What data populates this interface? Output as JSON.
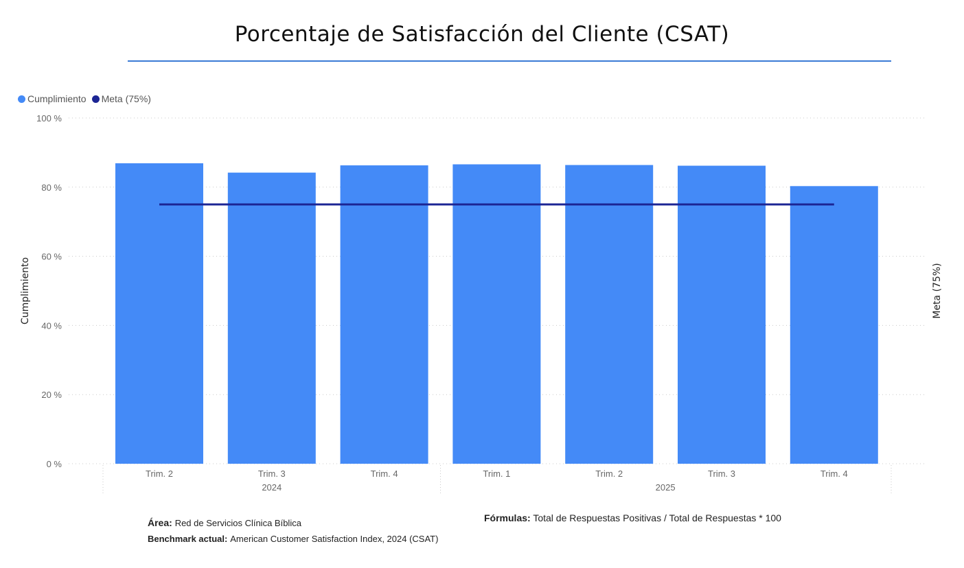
{
  "title": "Porcentaje de Satisfacción del Cliente (CSAT)",
  "colors": {
    "bar": "#448af7",
    "target": "#1c2594",
    "rule": "#3a7bd5",
    "grid": "#c8c8c8"
  },
  "legend": [
    {
      "label": "Cumplimiento",
      "color": "#448af7"
    },
    {
      "label": "Meta (75%)",
      "color": "#1c2594"
    }
  ],
  "chart_data": {
    "type": "bar",
    "categories": [
      "Trim. 2",
      "Trim. 3",
      "Trim. 4",
      "Trim. 1",
      "Trim. 2",
      "Trim. 3",
      "Trim. 4"
    ],
    "groups": [
      {
        "label": "2024",
        "count": 3
      },
      {
        "label": "2025",
        "count": 4
      }
    ],
    "series": [
      {
        "name": "Cumplimiento",
        "type": "bar",
        "values": [
          86.9,
          84.2,
          86.3,
          86.6,
          86.4,
          86.2,
          80.3
        ]
      },
      {
        "name": "Meta (75%)",
        "type": "line",
        "values": [
          75,
          75,
          75,
          75,
          75,
          75,
          75
        ]
      }
    ],
    "ylabel": "Cumplimiento",
    "y2label": "Meta (75%)",
    "ylim": [
      0,
      100
    ],
    "yticks": [
      0,
      20,
      40,
      60,
      80,
      100
    ],
    "ytick_labels": [
      "0 %",
      "20 %",
      "40 %",
      "60 %",
      "80 %",
      "100 %"
    ],
    "grid": true,
    "legend_position": "top-left"
  },
  "notes": {
    "area_label": "Área:",
    "area_value": "Red de Servicios Clínica Bíblica",
    "benchmark_label": "Benchmark actual:",
    "benchmark_value": "American Customer Satisfaction Index, 2024 (CSAT)",
    "formula_label": "Fórmulas:",
    "formula_value": "Total de Respuestas Positivas / Total de Respuestas * 100"
  }
}
